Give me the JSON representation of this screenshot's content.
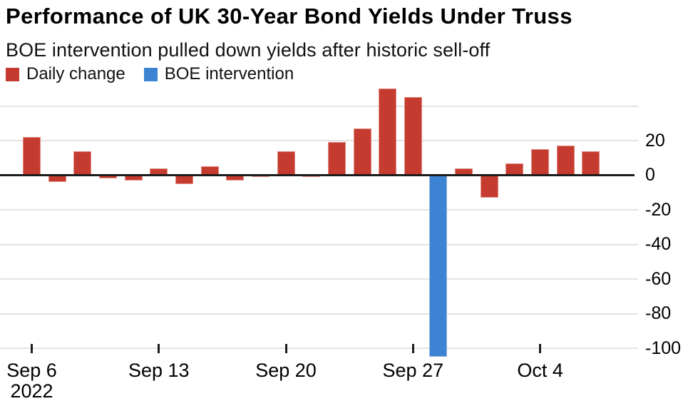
{
  "header": {
    "title": "Performance of UK 30-Year Bond Yields Under Truss",
    "subtitle": "BOE intervention pulled down yields after historic sell-off"
  },
  "colors": {
    "daily_change_red": "#c63b2f",
    "boe_intervention_blue": "#3d83d3",
    "gridline_gray": "#e3e3e3",
    "axis_black": "#1c1c1c",
    "background": "#ffffff"
  },
  "chart_data": {
    "type": "bar",
    "title": "Performance of UK 30-Year Bond Yields Under Truss",
    "subtitle": "BOE intervention pulled down yields after historic sell-off",
    "legend": [
      {
        "label": "Daily change",
        "color": "#c63b2f"
      },
      {
        "label": "BOE intervention",
        "color": "#3d83d3"
      }
    ],
    "ylim": [
      -110,
      52
    ],
    "grid_on": true,
    "legend_position": "top-left",
    "y_ticks": [
      {
        "value": 40,
        "label": ""
      },
      {
        "value": 20,
        "label": "20"
      },
      {
        "value": 0,
        "label": "0"
      },
      {
        "value": -20,
        "label": "-20"
      },
      {
        "value": -40,
        "label": "-40"
      },
      {
        "value": -60,
        "label": "-60"
      },
      {
        "value": -80,
        "label": "-80"
      },
      {
        "value": -100,
        "label": "-100"
      }
    ],
    "x_ticks": [
      {
        "index": 0,
        "label": "Sep 6",
        "sublabel": "2022"
      },
      {
        "index": 5,
        "label": "Sep 13",
        "sublabel": ""
      },
      {
        "index": 10,
        "label": "Sep 20",
        "sublabel": ""
      },
      {
        "index": 15,
        "label": "Sep 27",
        "sublabel": ""
      },
      {
        "index": 20,
        "label": "Oct 4",
        "sublabel": ""
      }
    ],
    "points": [
      {
        "date": "Sep 6",
        "value": 22,
        "series": "Daily change"
      },
      {
        "date": "Sep 7",
        "value": -4,
        "series": "Daily change"
      },
      {
        "date": "Sep 8",
        "value": 14,
        "series": "Daily change"
      },
      {
        "date": "Sep 9",
        "value": -2,
        "series": "Daily change"
      },
      {
        "date": "Sep 12",
        "value": -3,
        "series": "Daily change"
      },
      {
        "date": "Sep 13",
        "value": 4,
        "series": "Daily change"
      },
      {
        "date": "Sep 14",
        "value": -5,
        "series": "Daily change"
      },
      {
        "date": "Sep 15",
        "value": 5,
        "series": "Daily change"
      },
      {
        "date": "Sep 16",
        "value": -3,
        "series": "Daily change"
      },
      {
        "date": "Sep 19",
        "value": -1,
        "series": "Daily change"
      },
      {
        "date": "Sep 20",
        "value": 14,
        "series": "Daily change"
      },
      {
        "date": "Sep 21",
        "value": -1,
        "series": "Daily change"
      },
      {
        "date": "Sep 22",
        "value": 19,
        "series": "Daily change"
      },
      {
        "date": "Sep 23",
        "value": 27,
        "series": "Daily change"
      },
      {
        "date": "Sep 26",
        "value": 50,
        "series": "Daily change"
      },
      {
        "date": "Sep 27",
        "value": 45,
        "series": "Daily change"
      },
      {
        "date": "Sep 28",
        "value": -105,
        "series": "BOE intervention"
      },
      {
        "date": "Sep 29",
        "value": 4,
        "series": "Daily change"
      },
      {
        "date": "Sep 30",
        "value": -13,
        "series": "Daily change"
      },
      {
        "date": "Oct 3",
        "value": 7,
        "series": "Daily change"
      },
      {
        "date": "Oct 4",
        "value": 15,
        "series": "Daily change"
      },
      {
        "date": "Oct 5",
        "value": 17,
        "series": "Daily change"
      },
      {
        "date": "Oct 6",
        "value": 14,
        "series": "Daily change"
      }
    ]
  }
}
